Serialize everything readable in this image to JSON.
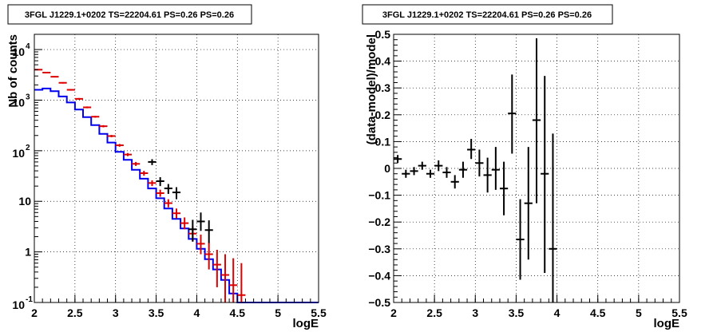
{
  "chart_data": [
    {
      "type": "step",
      "title": "3FGL J1229.1+0202 TS=22204.61 PS=0.26 PS=0.26",
      "xlabel": "logE",
      "ylabel": "Nb of counts",
      "xlim": [
        2,
        5.5
      ],
      "ylim": [
        0.1,
        20000
      ],
      "yscale": "log",
      "grid": true,
      "x_ticks": [
        "2",
        "2.5",
        "3",
        "3.5",
        "4",
        "4.5",
        "5",
        "5.5"
      ],
      "y_ticks": [
        {
          "base": "10",
          "exp": "-1",
          "value": 0.1
        },
        {
          "base": "1",
          "exp": "",
          "value": 1
        },
        {
          "base": "10",
          "exp": "",
          "value": 10
        },
        {
          "base": "10",
          "exp": "2",
          "value": 100
        },
        {
          "base": "10",
          "exp": "3",
          "value": 1000
        },
        {
          "base": "10",
          "exp": "4",
          "value": 10000
        }
      ],
      "bin_edges": [
        2.0,
        2.1,
        2.2,
        2.3,
        2.4,
        2.5,
        2.6,
        2.7,
        2.8,
        2.9,
        3.0,
        3.1,
        3.2,
        3.3,
        3.4,
        3.5,
        3.6,
        3.7,
        3.8,
        3.9,
        4.0,
        4.1,
        4.2,
        4.3,
        4.4,
        4.5,
        4.6,
        4.7,
        4.8,
        4.9,
        5.0,
        5.1,
        5.2,
        5.3,
        5.4,
        5.5
      ],
      "series": [
        {
          "kind": "model_step",
          "color": "#0000ee",
          "values": [
            1600,
            1700,
            1500,
            1180,
            900,
            650,
            460,
            320,
            215,
            145,
            95,
            66,
            42,
            28,
            18,
            11.5,
            7.2,
            4.5,
            2.9,
            1.8,
            1.15,
            0.72,
            0.45,
            0.28,
            0.15,
            0.1,
            0.1,
            0.1,
            0.1,
            0.1,
            0.1,
            0.1,
            0.1,
            0.1,
            0.1
          ]
        },
        {
          "kind": "red_points",
          "color": "#dd0000",
          "points": [
            {
              "x": 2.05,
              "y": 4000,
              "lo": 3900,
              "hi": 4100
            },
            {
              "x": 2.15,
              "y": 3500,
              "lo": 3400,
              "hi": 3600
            },
            {
              "x": 2.25,
              "y": 2900,
              "lo": 2810,
              "hi": 2990
            },
            {
              "x": 2.35,
              "y": 2200,
              "lo": 2130,
              "hi": 2270
            },
            {
              "x": 2.45,
              "y": 1600,
              "lo": 1540,
              "hi": 1660
            },
            {
              "x": 2.55,
              "y": 1060,
              "lo": 1020,
              "hi": 1100
            },
            {
              "x": 2.65,
              "y": 720,
              "lo": 690,
              "hi": 750
            },
            {
              "x": 2.75,
              "y": 470,
              "lo": 450,
              "hi": 490
            },
            {
              "x": 2.85,
              "y": 305,
              "lo": 290,
              "hi": 320
            },
            {
              "x": 2.95,
              "y": 195,
              "lo": 185,
              "hi": 205
            },
            {
              "x": 3.05,
              "y": 128,
              "lo": 120,
              "hi": 136
            },
            {
              "x": 3.15,
              "y": 84,
              "lo": 78,
              "hi": 90
            },
            {
              "x": 3.25,
              "y": 55,
              "lo": 50,
              "hi": 60
            },
            {
              "x": 3.35,
              "y": 36,
              "lo": 32,
              "hi": 40
            },
            {
              "x": 3.45,
              "y": 23,
              "lo": 20,
              "hi": 26
            },
            {
              "x": 3.55,
              "y": 14.5,
              "lo": 12.3,
              "hi": 17
            },
            {
              "x": 3.65,
              "y": 9.2,
              "lo": 7.6,
              "hi": 11
            },
            {
              "x": 3.75,
              "y": 5.8,
              "lo": 4.6,
              "hi": 7.2
            },
            {
              "x": 3.85,
              "y": 3.7,
              "lo": 2.8,
              "hi": 4.8
            },
            {
              "x": 3.95,
              "y": 2.3,
              "lo": 1.6,
              "hi": 3.2
            },
            {
              "x": 4.05,
              "y": 1.45,
              "lo": 0.9,
              "hi": 2.2
            },
            {
              "x": 4.15,
              "y": 0.9,
              "lo": 0.45,
              "hi": 1.55
            },
            {
              "x": 4.25,
              "y": 0.56,
              "lo": 0.2,
              "hi": 1.1
            },
            {
              "x": 4.35,
              "y": 0.35,
              "lo": 0.1,
              "hi": 0.9
            },
            {
              "x": 4.45,
              "y": 0.22,
              "lo": 0.1,
              "hi": 0.75
            },
            {
              "x": 4.55,
              "y": 0.14,
              "lo": 0.1,
              "hi": 0.6
            }
          ]
        },
        {
          "kind": "data_points",
          "color": "#000000",
          "points": [
            {
              "x": 3.45,
              "y": 60,
              "lo": 52,
              "hi": 68
            },
            {
              "x": 3.55,
              "y": 25,
              "lo": 20,
              "hi": 30
            },
            {
              "x": 3.65,
              "y": 18,
              "lo": 14,
              "hi": 22
            },
            {
              "x": 3.75,
              "y": 15,
              "lo": 11,
              "hi": 19
            },
            {
              "x": 3.95,
              "y": 2.8,
              "lo": 1.6,
              "hi": 4.3
            },
            {
              "x": 4.05,
              "y": 4.0,
              "lo": 2.6,
              "hi": 6.0
            },
            {
              "x": 4.15,
              "y": 2.7,
              "lo": 1.5,
              "hi": 4.2
            }
          ]
        }
      ]
    },
    {
      "type": "scatter",
      "title": "3FGL J1229.1+0202 TS=22204.61 PS=0.26 PS=0.26",
      "xlabel": "logE",
      "ylabel": "(data-model)/model",
      "xlim": [
        2,
        5.5
      ],
      "ylim": [
        -0.5,
        0.5
      ],
      "grid": true,
      "x_ticks": [
        "2",
        "2.5",
        "3",
        "3.5",
        "4",
        "4.5",
        "5",
        "5.5"
      ],
      "y_ticks": [
        "−0.5",
        "−0.4",
        "−0.3",
        "−0.2",
        "−0.1",
        "0",
        "0.1",
        "0.2",
        "0.3",
        "0.4",
        "0.5"
      ],
      "points": [
        {
          "x": 2.05,
          "y": 0.035,
          "lo": 0.02,
          "hi": 0.05
        },
        {
          "x": 2.15,
          "y": -0.02,
          "lo": -0.035,
          "hi": -0.005
        },
        {
          "x": 2.25,
          "y": -0.01,
          "lo": -0.025,
          "hi": 0.005
        },
        {
          "x": 2.35,
          "y": 0.01,
          "lo": -0.005,
          "hi": 0.025
        },
        {
          "x": 2.45,
          "y": -0.02,
          "lo": -0.035,
          "hi": -0.005
        },
        {
          "x": 2.55,
          "y": 0.01,
          "lo": -0.01,
          "hi": 0.03
        },
        {
          "x": 2.65,
          "y": -0.015,
          "lo": -0.035,
          "hi": 0.005
        },
        {
          "x": 2.75,
          "y": -0.05,
          "lo": -0.075,
          "hi": -0.025
        },
        {
          "x": 2.85,
          "y": -0.005,
          "lo": -0.035,
          "hi": 0.025
        },
        {
          "x": 2.95,
          "y": 0.07,
          "lo": 0.035,
          "hi": 0.11
        },
        {
          "x": 3.05,
          "y": 0.02,
          "lo": -0.03,
          "hi": 0.07
        },
        {
          "x": 3.15,
          "y": -0.025,
          "lo": -0.09,
          "hi": 0.04
        },
        {
          "x": 3.25,
          "y": -0.005,
          "lo": -0.08,
          "hi": 0.08
        },
        {
          "x": 3.35,
          "y": -0.075,
          "lo": -0.175,
          "hi": 0.025
        },
        {
          "x": 3.45,
          "y": 0.205,
          "lo": 0.055,
          "hi": 0.35
        },
        {
          "x": 3.55,
          "y": -0.265,
          "lo": -0.415,
          "hi": -0.115
        },
        {
          "x": 3.65,
          "y": -0.13,
          "lo": -0.34,
          "hi": 0.08
        },
        {
          "x": 3.75,
          "y": 0.18,
          "lo": -0.13,
          "hi": 0.485
        },
        {
          "x": 3.85,
          "y": -0.02,
          "lo": -0.39,
          "hi": 0.345
        },
        {
          "x": 3.95,
          "y": -0.3,
          "lo": -0.5,
          "hi": 0.13
        }
      ]
    }
  ]
}
